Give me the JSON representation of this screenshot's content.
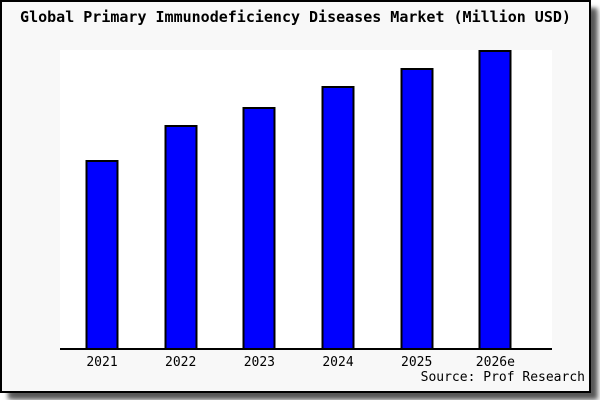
{
  "colors": {
    "card_background": "#f8f8f8",
    "plot_background": "#ffffff",
    "frame": "#000000",
    "axis": "#000000",
    "bar_fill": "#0000ff",
    "bar_border": "#000000",
    "text": "#000000"
  },
  "chart_data": {
    "type": "bar",
    "title": "Global Primary Immunodeficiency Diseases Market (Million USD)",
    "categories": [
      "2021",
      "2022",
      "2023",
      "2024",
      "2025",
      "2026e"
    ],
    "values": [
      0.63,
      0.75,
      0.81,
      0.88,
      0.94,
      1.0
    ],
    "value_scale": "relative bar heights; no y-axis tick labels or gridlines shown",
    "xlabel": "",
    "ylabel": "",
    "ylim": [
      0,
      1
    ],
    "grid": false,
    "legend": false,
    "bar_color": "#0000ff",
    "bar_border_color": "#000000",
    "source": "Source: Prof Research"
  },
  "footer": {
    "source": "Source: Prof Research"
  }
}
